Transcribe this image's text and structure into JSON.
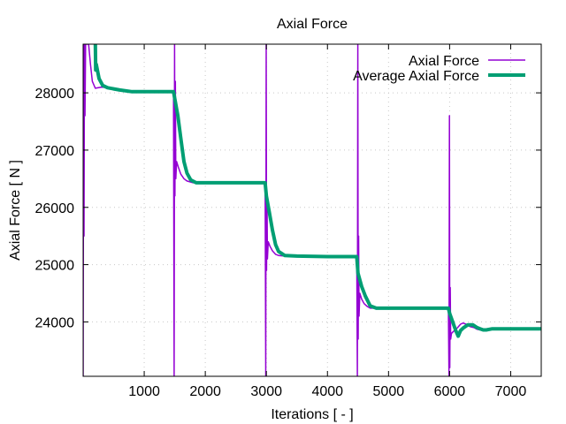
{
  "chart_data": {
    "type": "line",
    "title": "Axial Force",
    "xlabel": "Iterations [ - ]",
    "ylabel": "Axial Force [ N ]",
    "xlim": [
      0,
      7500
    ],
    "ylim": [
      23050,
      28850
    ],
    "xticks": [
      1000,
      2000,
      3000,
      4000,
      5000,
      6000,
      7000
    ],
    "yticks": [
      24000,
      25000,
      26000,
      27000,
      28000
    ],
    "grid": true,
    "legend_position": "top-right",
    "series": [
      {
        "name": "Axial Force",
        "color": "#9400d3",
        "points": [
          [
            0,
            23050
          ],
          [
            8,
            28850
          ],
          [
            15,
            25500
          ],
          [
            22,
            28850
          ],
          [
            30,
            27600
          ],
          [
            40,
            28850
          ],
          [
            60,
            28850
          ],
          [
            90,
            28850
          ],
          [
            120,
            28500
          ],
          [
            150,
            28200
          ],
          [
            200,
            28080
          ],
          [
            300,
            28100
          ],
          [
            400,
            28090
          ],
          [
            500,
            28060
          ],
          [
            600,
            28040
          ],
          [
            800,
            28020
          ],
          [
            1000,
            28020
          ],
          [
            1200,
            28020
          ],
          [
            1400,
            28020
          ],
          [
            1480,
            28020
          ],
          [
            1490,
            23050
          ],
          [
            1497,
            28850
          ],
          [
            1503,
            26200
          ],
          [
            1510,
            28200
          ],
          [
            1518,
            26500
          ],
          [
            1530,
            26800
          ],
          [
            1560,
            26700
          ],
          [
            1600,
            26580
          ],
          [
            1650,
            26500
          ],
          [
            1700,
            26460
          ],
          [
            1800,
            26430
          ],
          [
            2000,
            26430
          ],
          [
            2400,
            26430
          ],
          [
            2980,
            26430
          ],
          [
            2990,
            23050
          ],
          [
            2997,
            28850
          ],
          [
            3003,
            24900
          ],
          [
            3010,
            26200
          ],
          [
            3018,
            25100
          ],
          [
            3030,
            25400
          ],
          [
            3060,
            25320
          ],
          [
            3100,
            25240
          ],
          [
            3150,
            25180
          ],
          [
            3200,
            25160
          ],
          [
            3300,
            25150
          ],
          [
            3600,
            25150
          ],
          [
            4000,
            25140
          ],
          [
            4480,
            25140
          ],
          [
            4490,
            23050
          ],
          [
            4497,
            28850
          ],
          [
            4503,
            23700
          ],
          [
            4510,
            25500
          ],
          [
            4518,
            24100
          ],
          [
            4530,
            24500
          ],
          [
            4560,
            24400
          ],
          [
            4600,
            24320
          ],
          [
            4650,
            24270
          ],
          [
            4700,
            24240
          ],
          [
            4800,
            24240
          ],
          [
            5200,
            24240
          ],
          [
            5980,
            24240
          ],
          [
            5990,
            23050
          ],
          [
            5997,
            27600
          ],
          [
            6003,
            23200
          ],
          [
            6010,
            24600
          ],
          [
            6018,
            23700
          ],
          [
            6030,
            23800
          ],
          [
            6080,
            23850
          ],
          [
            6130,
            23900
          ],
          [
            6180,
            23960
          ],
          [
            6220,
            23980
          ],
          [
            6270,
            23960
          ],
          [
            6330,
            23920
          ],
          [
            6400,
            23900
          ],
          [
            6450,
            23870
          ],
          [
            6500,
            23860
          ],
          [
            6550,
            23850
          ],
          [
            6600,
            23860
          ],
          [
            6700,
            23880
          ],
          [
            6800,
            23890
          ],
          [
            7000,
            23885
          ],
          [
            7300,
            23880
          ],
          [
            7500,
            23880
          ]
        ]
      },
      {
        "name": "Average Axial Force",
        "color": "#009e73",
        "points": [
          [
            200,
            28850
          ],
          [
            205,
            28400
          ],
          [
            215,
            28500
          ],
          [
            260,
            28250
          ],
          [
            320,
            28130
          ],
          [
            400,
            28090
          ],
          [
            500,
            28070
          ],
          [
            600,
            28050
          ],
          [
            800,
            28020
          ],
          [
            1000,
            28020
          ],
          [
            1200,
            28020
          ],
          [
            1480,
            28020
          ],
          [
            1500,
            27900
          ],
          [
            1550,
            27600
          ],
          [
            1600,
            27200
          ],
          [
            1650,
            26800
          ],
          [
            1700,
            26600
          ],
          [
            1760,
            26480
          ],
          [
            1850,
            26430
          ],
          [
            2000,
            26430
          ],
          [
            2400,
            26430
          ],
          [
            2980,
            26430
          ],
          [
            3000,
            26200
          ],
          [
            3050,
            25900
          ],
          [
            3100,
            25600
          ],
          [
            3150,
            25350
          ],
          [
            3200,
            25230
          ],
          [
            3300,
            25160
          ],
          [
            3500,
            25150
          ],
          [
            4000,
            25140
          ],
          [
            4480,
            25140
          ],
          [
            4500,
            24850
          ],
          [
            4560,
            24620
          ],
          [
            4620,
            24450
          ],
          [
            4700,
            24280
          ],
          [
            4800,
            24240
          ],
          [
            5000,
            24240
          ],
          [
            5500,
            24240
          ],
          [
            5980,
            24240
          ],
          [
            6000,
            24150
          ],
          [
            6050,
            24000
          ],
          [
            6100,
            23850
          ],
          [
            6140,
            23750
          ],
          [
            6180,
            23850
          ],
          [
            6230,
            23900
          ],
          [
            6300,
            23950
          ],
          [
            6380,
            23950
          ],
          [
            6450,
            23900
          ],
          [
            6500,
            23880
          ],
          [
            6550,
            23860
          ],
          [
            6600,
            23860
          ],
          [
            6700,
            23880
          ],
          [
            6800,
            23880
          ],
          [
            7000,
            23880
          ],
          [
            7500,
            23880
          ]
        ]
      }
    ]
  }
}
